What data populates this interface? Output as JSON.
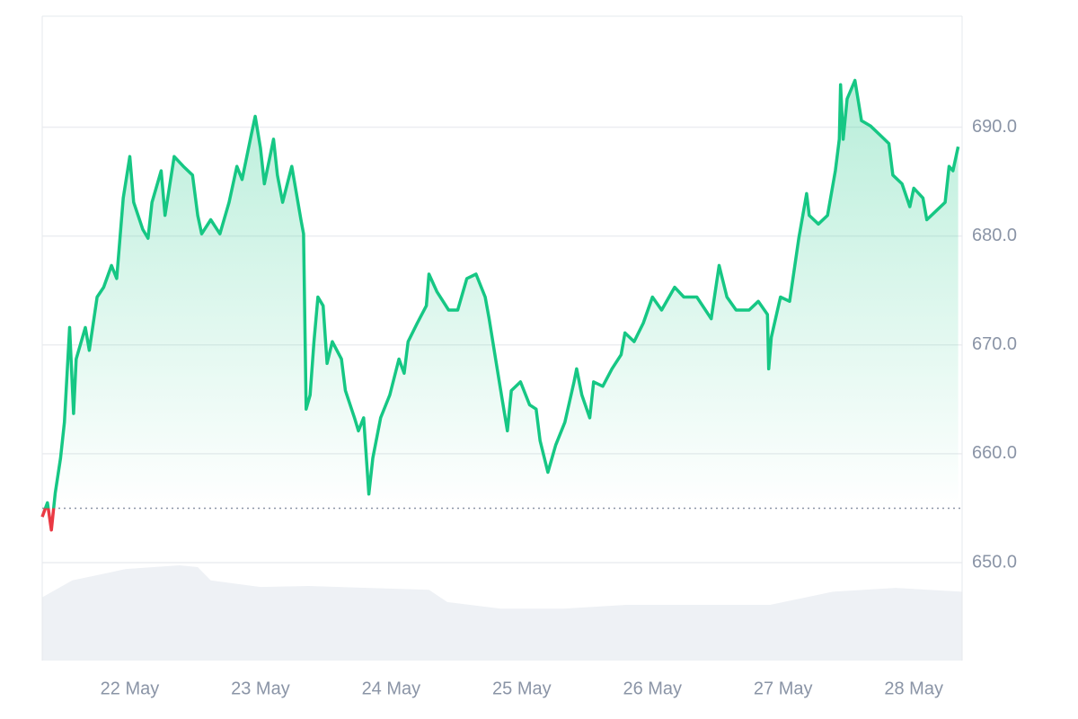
{
  "chart_data": {
    "type": "line",
    "baseline": 655.0,
    "up_color": "#16c784",
    "down_color": "#ea3943",
    "grid": true,
    "xlim": [
      21.33,
      28.37
    ],
    "xticks": [
      {
        "value": 22,
        "label": "22 May"
      },
      {
        "value": 23,
        "label": "23 May"
      },
      {
        "value": 24,
        "label": "24 May"
      },
      {
        "value": 25,
        "label": "25 May"
      },
      {
        "value": 26,
        "label": "26 May"
      },
      {
        "value": 27,
        "label": "27 May"
      },
      {
        "value": 28,
        "label": "28 May"
      }
    ],
    "ylim": [
      641,
      700.2
    ],
    "yticks": [
      {
        "value": 650,
        "label": "650.0"
      },
      {
        "value": 660,
        "label": "660.0"
      },
      {
        "value": 670,
        "label": "670.0"
      },
      {
        "value": 680,
        "label": "680.0"
      },
      {
        "value": 690,
        "label": "690.0"
      }
    ],
    "series": [
      {
        "x": [
          21.33,
          21.37,
          21.4,
          21.43,
          21.47,
          21.5,
          21.54,
          21.57,
          21.59,
          21.66,
          21.69,
          21.75,
          21.8,
          21.86,
          21.9,
          21.95,
          22.0,
          22.03,
          22.1,
          22.14,
          22.17,
          22.24,
          22.27,
          22.34,
          22.41,
          22.48,
          22.52,
          22.55,
          22.62,
          22.69,
          22.76,
          22.82,
          22.86,
          22.93,
          22.96,
          23.0,
          23.03,
          23.1,
          23.13,
          23.17,
          23.24,
          23.31,
          23.33,
          23.35,
          23.38,
          23.41,
          23.44,
          23.48,
          23.51,
          23.55,
          23.62,
          23.65,
          23.72,
          23.75,
          23.79,
          23.83,
          23.86,
          23.92,
          23.99,
          24.06,
          24.1,
          24.13,
          24.2,
          24.27,
          24.29,
          24.35,
          24.44,
          24.51,
          24.58,
          24.65,
          24.72,
          24.75,
          24.8,
          24.85,
          24.89,
          24.92,
          24.99,
          25.06,
          25.11,
          25.14,
          25.2,
          25.26,
          25.33,
          25.4,
          25.42,
          25.46,
          25.52,
          25.55,
          25.62,
          25.69,
          25.76,
          25.79,
          25.86,
          25.93,
          26.0,
          26.07,
          26.17,
          26.24,
          26.34,
          26.45,
          26.51,
          26.57,
          26.64,
          26.74,
          26.81,
          26.88,
          26.89,
          26.91,
          26.98,
          27.05,
          27.09,
          27.12,
          27.18,
          27.2,
          27.27,
          27.34,
          27.4,
          27.43,
          27.44,
          27.46,
          27.49,
          27.55,
          27.6,
          27.67,
          27.74,
          27.81,
          27.84,
          27.91,
          27.97,
          28.0,
          28.07,
          28.1,
          28.17,
          28.24,
          28.27,
          28.3,
          28.34
        ],
        "values": [
          654.2,
          655.5,
          653.0,
          656.4,
          659.6,
          662.9,
          671.6,
          663.7,
          668.7,
          671.6,
          669.5,
          674.4,
          675.3,
          677.3,
          676.1,
          683.5,
          687.3,
          683.1,
          680.6,
          679.8,
          683.1,
          686.0,
          681.9,
          687.3,
          686.4,
          685.6,
          681.9,
          680.2,
          681.5,
          680.2,
          683.1,
          686.4,
          685.2,
          689.3,
          691.0,
          688.1,
          684.8,
          688.9,
          685.6,
          683.1,
          686.4,
          681.5,
          680.2,
          664.1,
          665.4,
          670.3,
          674.4,
          673.6,
          668.3,
          670.3,
          668.7,
          665.8,
          663.3,
          662.1,
          663.3,
          656.3,
          659.6,
          663.3,
          665.4,
          668.7,
          667.4,
          670.3,
          672.0,
          673.6,
          676.5,
          674.9,
          673.2,
          673.2,
          676.1,
          676.5,
          674.4,
          672.4,
          668.7,
          665.0,
          662.1,
          665.8,
          666.6,
          664.5,
          664.1,
          661.2,
          658.3,
          660.8,
          662.9,
          666.6,
          667.8,
          665.4,
          663.3,
          666.6,
          666.2,
          667.8,
          669.1,
          671.1,
          670.3,
          672.0,
          674.4,
          673.2,
          675.3,
          674.4,
          674.4,
          672.4,
          677.3,
          674.4,
          673.2,
          673.2,
          674.0,
          672.8,
          667.8,
          670.7,
          674.4,
          674.0,
          677.3,
          679.8,
          683.9,
          681.9,
          681.1,
          681.9,
          686.0,
          688.9,
          693.9,
          688.9,
          692.6,
          694.3,
          690.6,
          690.1,
          689.3,
          688.5,
          685.6,
          684.8,
          682.7,
          684.4,
          683.5,
          681.5,
          682.3,
          683.1,
          686.4,
          686.0,
          688.2
        ]
      }
    ],
    "volume": {
      "color": "#eef1f5",
      "x": [
        21.33,
        21.56,
        21.97,
        22.38,
        22.52,
        22.62,
        23.0,
        23.37,
        24.29,
        24.43,
        24.84,
        25.32,
        25.8,
        26.49,
        26.9,
        27.38,
        27.86,
        28.37
      ],
      "values": [
        67,
        85,
        97,
        101,
        99,
        85,
        78,
        79,
        75,
        62,
        55,
        55,
        59,
        59,
        59,
        73,
        77,
        73
      ]
    }
  }
}
